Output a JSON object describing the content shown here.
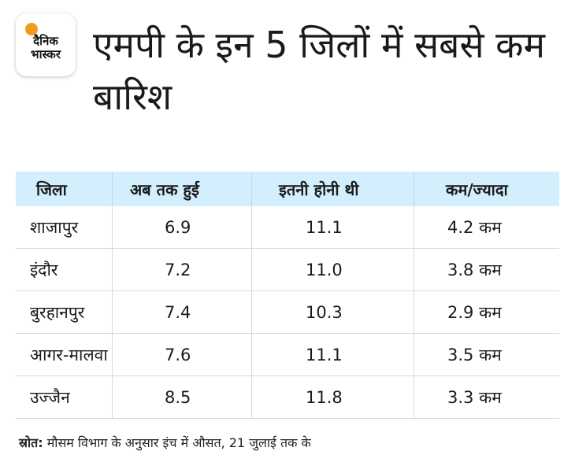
{
  "logo": {
    "line1": "दैनिक",
    "line2": "भास्कर"
  },
  "title": "एमपी के इन 5 जिलों में सबसे कम बारिश",
  "table": {
    "headers": [
      "जिला",
      "अब तक हुई",
      "इतनी होनी थी",
      "कम/ज्यादा"
    ],
    "rows": [
      [
        "शाजापुर",
        "6.9",
        "11.1",
        "4.2 कम"
      ],
      [
        "इंदौर",
        "7.2",
        "11.0",
        "3.8 कम"
      ],
      [
        "बुरहानपुर",
        "7.4",
        "10.3",
        "2.9 कम"
      ],
      [
        "आगर-मालवा",
        "7.6",
        "11.1",
        "3.5 कम"
      ],
      [
        "उज्जैन",
        "8.5",
        "11.8",
        "3.3 कम"
      ]
    ]
  },
  "source": {
    "label": "स्रोत:",
    "text": " मौसम विभाग के अनुसार इंच में औसत, 21 जुलाई तक के"
  }
}
